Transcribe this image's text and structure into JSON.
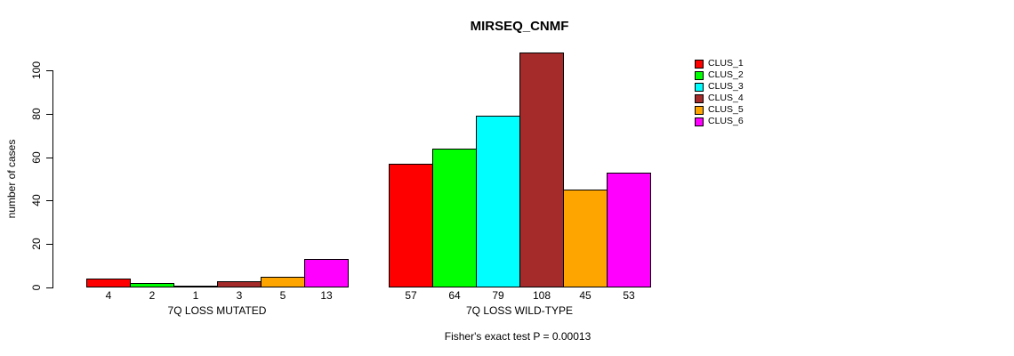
{
  "chart_data": {
    "type": "bar",
    "title": "MIRSEQ_CNMF",
    "ylabel": "number of cases",
    "ylim": [
      0,
      110
    ],
    "yticks": [
      0,
      20,
      40,
      60,
      80,
      100
    ],
    "grid": false,
    "legend_position": "right-outside",
    "series_colors": [
      "#ff0000",
      "#00ff00",
      "#00ffff",
      "#a52a2a",
      "#ffa500",
      "#ff00ff"
    ],
    "legend": [
      {
        "label": "CLUS_1",
        "color": "#ff0000"
      },
      {
        "label": "CLUS_2",
        "color": "#00ff00"
      },
      {
        "label": "CLUS_3",
        "color": "#00ffff"
      },
      {
        "label": "CLUS_4",
        "color": "#a52a2a"
      },
      {
        "label": "CLUS_5",
        "color": "#ffa500"
      },
      {
        "label": "CLUS_6",
        "color": "#ff00ff"
      }
    ],
    "groups": [
      {
        "label": "7Q LOSS MUTATED",
        "values": [
          4,
          2,
          1,
          3,
          5,
          13
        ]
      },
      {
        "label": "7Q LOSS WILD-TYPE",
        "values": [
          57,
          64,
          79,
          108,
          45,
          53
        ]
      }
    ],
    "annotation": "Fisher's exact test P = 0.00013"
  }
}
